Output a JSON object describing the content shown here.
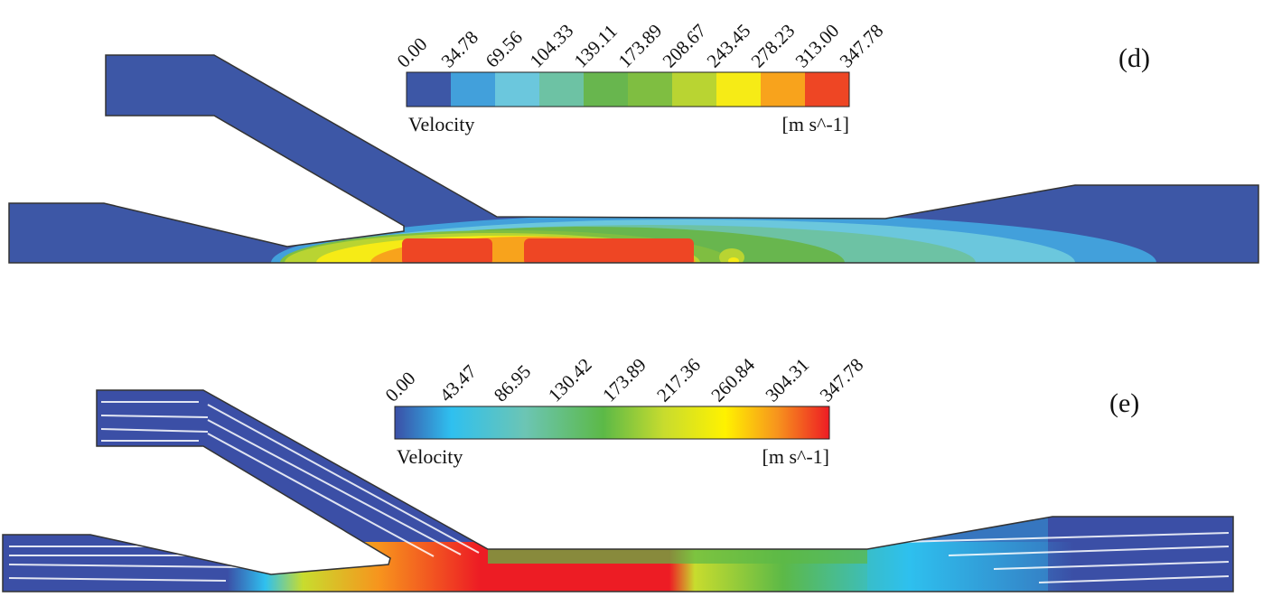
{
  "panels": [
    {
      "label": "(d)",
      "legend": {
        "title": "Velocity",
        "unit": "[m s^-1]",
        "type": "discrete",
        "ticks": [
          "0.00",
          "34.78",
          "69.56",
          "104.33",
          "139.11",
          "173.89",
          "208.67",
          "243.45",
          "278.23",
          "313.00",
          "347.78"
        ],
        "colors": [
          "#3d57a6",
          "#42a0db",
          "#6bc7dd",
          "#6dc2a4",
          "#68b64e",
          "#7fbe41",
          "#b9d432",
          "#f6eb16",
          "#f8a31c",
          "#ee4624"
        ]
      }
    },
    {
      "label": "(e)",
      "legend": {
        "title": "Velocity",
        "unit": "[m s^-1]",
        "type": "continuous",
        "ticks": [
          "0.00",
          "43.47",
          "86.95",
          "130.42",
          "173.89",
          "217.36",
          "260.84",
          "304.31",
          "347.78"
        ],
        "colors": [
          "#3b4fa6",
          "#2fc0ef",
          "#6cc5b4",
          "#5cb947",
          "#c8dc2e",
          "#fff200",
          "#f7941d",
          "#ed1c24"
        ]
      }
    }
  ]
}
